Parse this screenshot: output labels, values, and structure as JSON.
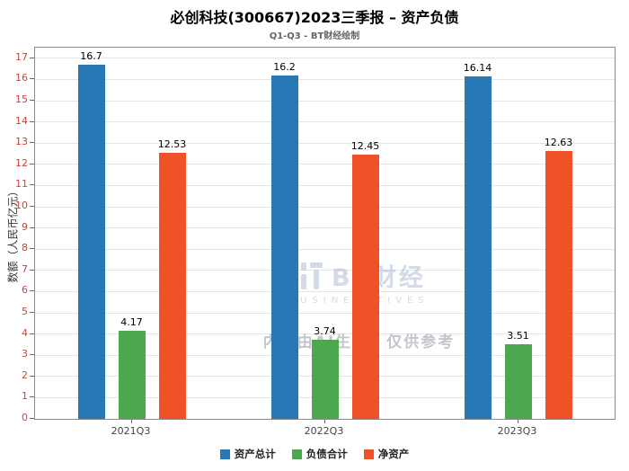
{
  "title": "必创科技(300667)2023三季报 – 资产负债",
  "subtitle": "Q1-Q3 - BT财经绘制",
  "watermark": {
    "logo_text": "BT财经",
    "logo_subtext": "BUSINESSTIVES",
    "notice": "内容由AI生成，仅供参考"
  },
  "chart_data": {
    "type": "bar",
    "categories": [
      "2021Q3",
      "2022Q3",
      "2023Q3"
    ],
    "series": [
      {
        "name": "资产总计",
        "color": "#2878b5",
        "values": [
          16.7,
          16.2,
          16.14
        ]
      },
      {
        "name": "负债合计",
        "color": "#4ca74f",
        "values": [
          4.17,
          3.74,
          3.51
        ]
      },
      {
        "name": "净资产",
        "color": "#ee5226",
        "values": [
          12.53,
          12.45,
          12.63
        ]
      }
    ],
    "title": "必创科技(300667)2023三季报 – 资产负债",
    "xlabel": "",
    "ylabel": "数额（人民币亿元）",
    "ylim": [
      0,
      17.5
    ],
    "ytick_min": 0,
    "ytick_max": 17,
    "ytick_step": 1,
    "grid": true,
    "legend_position": "bottom",
    "ytick_color": "#cb4335"
  }
}
